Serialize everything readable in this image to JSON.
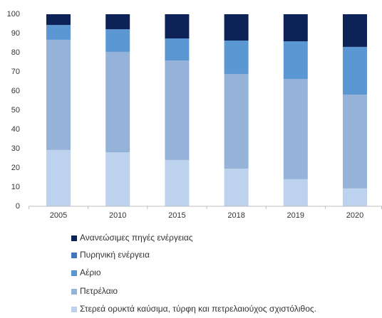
{
  "chart_data": {
    "type": "stacked_bar",
    "categories": [
      "2005",
      "2010",
      "2015",
      "2018",
      "2019",
      "2020"
    ],
    "series": [
      {
        "name": "Στερεά ορυκτά καύσιμα, τύρφη και πετρελαιούχος σχιστόλιθος.",
        "color": "#bdd2ec",
        "values": [
          29.3,
          28.1,
          24.1,
          19.6,
          14.1,
          9.3
        ]
      },
      {
        "name": "Πετρέλαιο",
        "color": "#95b3d9",
        "values": [
          57.4,
          52.3,
          51.8,
          49.3,
          52.2,
          48.8
        ]
      },
      {
        "name": "Αέριο",
        "color": "#5b97d3",
        "values": [
          7.7,
          11.8,
          11.5,
          17.4,
          19.6,
          24.9
        ]
      },
      {
        "name": "Πυρηνική ενέργεια",
        "color": "#4178bd",
        "values": [
          0,
          0,
          0,
          0,
          0,
          0
        ]
      },
      {
        "name": "Ανανεώσιμες πηγές ενέργειας",
        "color": "#0d2357",
        "values": [
          5.6,
          7.8,
          12.6,
          13.7,
          14.1,
          17.0
        ]
      }
    ],
    "ylim": [
      0,
      100
    ],
    "yticks": [
      0,
      10,
      20,
      30,
      40,
      50,
      60,
      70,
      80,
      90,
      100
    ],
    "grid": false
  }
}
